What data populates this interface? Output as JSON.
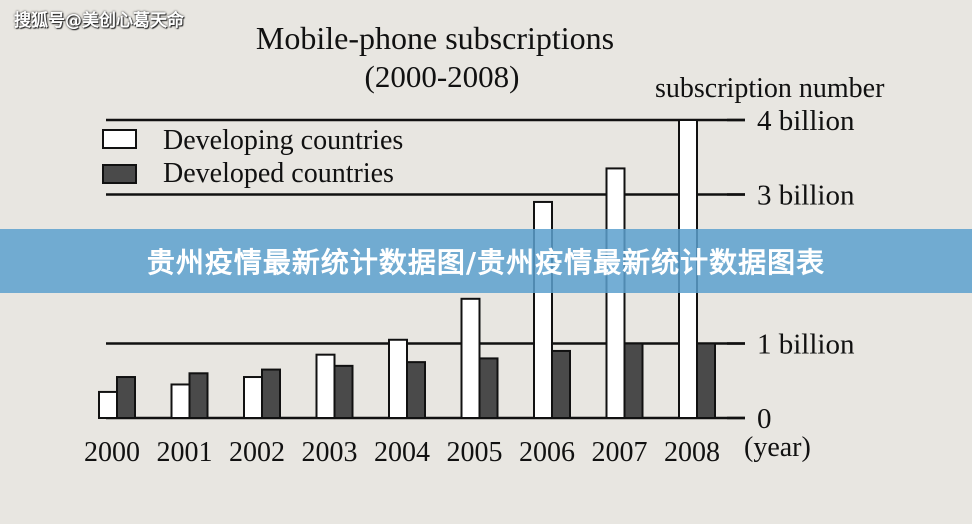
{
  "watermark": "搜狐号@美创心葛天命",
  "banner": {
    "title": "贵州疫情最新统计数据图/贵州疫情最新统计数据图表"
  },
  "chart_data": {
    "type": "bar",
    "title": "Mobile-phone subscriptions",
    "subtitle": "(2000-2008)",
    "ylabel": "subscription number",
    "xlabel": "(year)",
    "categories": [
      "2000",
      "2001",
      "2002",
      "2003",
      "2004",
      "2005",
      "2006",
      "2007",
      "2008"
    ],
    "series": [
      {
        "name": "Developing countries",
        "values": [
          0.35,
          0.45,
          0.55,
          0.85,
          1.05,
          1.6,
          2.9,
          3.35,
          4.0
        ]
      },
      {
        "name": "Developed countries",
        "values": [
          0.55,
          0.6,
          0.65,
          0.7,
          0.75,
          0.8,
          0.9,
          1.0,
          1.0
        ]
      }
    ],
    "yticks": [
      {
        "value": 0,
        "label": "0"
      },
      {
        "value": 1,
        "label": "1 billion"
      },
      {
        "value": 3,
        "label": "3 billion"
      },
      {
        "value": 4,
        "label": "4 billion"
      }
    ],
    "ylim": [
      0,
      4
    ],
    "legend_position": "top-left",
    "colors": {
      "developing": "#ffffff",
      "developed": "#4a4a4a",
      "line": "#111111"
    }
  }
}
